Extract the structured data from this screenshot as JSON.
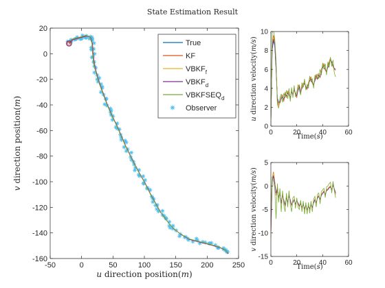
{
  "figure_title": "State Estimation Result",
  "colors": {
    "true": "#0072BD",
    "kf": "#D95319",
    "vbkf_f": "#EDB120",
    "vbkf_d": "#7E2F8E",
    "vbkfseq_d": "#77AC30",
    "observer": "#4DBEEE",
    "axis": "#262626"
  },
  "legend": {
    "items": [
      {
        "label": "True",
        "sub": "",
        "color_key": "true",
        "kind": "line"
      },
      {
        "label": "KF",
        "sub": "",
        "color_key": "kf",
        "kind": "line"
      },
      {
        "label": "VBKF",
        "sub": "f",
        "color_key": "vbkf_f",
        "kind": "line"
      },
      {
        "label": "VBKF",
        "sub": "d",
        "color_key": "vbkf_d",
        "kind": "line"
      },
      {
        "label": "VBKFSEQ",
        "sub": "d",
        "color_key": "vbkfseq_d",
        "kind": "line"
      },
      {
        "label": "Observer",
        "sub": "",
        "color_key": "observer",
        "kind": "marker"
      }
    ]
  },
  "chart_data": [
    {
      "id": "position",
      "type": "scatter",
      "xlabel": "u direction position(m)",
      "ylabel": "v direction position(m)",
      "xlim": [
        -50,
        250
      ],
      "ylim": [
        -160,
        20
      ],
      "xticks": [
        -50,
        0,
        50,
        100,
        150,
        200,
        250
      ],
      "yticks": [
        -160,
        -140,
        -120,
        -100,
        -80,
        -60,
        -40,
        -20,
        0,
        20
      ],
      "start_point": [
        -20,
        8
      ],
      "path": [
        [
          -20,
          8
        ],
        [
          -15,
          11
        ],
        [
          -8,
          12
        ],
        [
          0,
          13
        ],
        [
          8,
          14
        ],
        [
          14,
          13
        ],
        [
          17,
          8
        ],
        [
          18,
          0
        ],
        [
          20,
          -8
        ],
        [
          24,
          -16
        ],
        [
          29,
          -24
        ],
        [
          35,
          -32
        ],
        [
          41,
          -40
        ],
        [
          48,
          -48
        ],
        [
          56,
          -56
        ],
        [
          63,
          -64
        ],
        [
          70,
          -72
        ],
        [
          78,
          -80
        ],
        [
          86,
          -88
        ],
        [
          94,
          -95
        ],
        [
          102,
          -102
        ],
        [
          110,
          -110
        ],
        [
          118,
          -117
        ],
        [
          126,
          -124
        ],
        [
          135,
          -130
        ],
        [
          145,
          -136
        ],
        [
          158,
          -141
        ],
        [
          172,
          -145
        ],
        [
          188,
          -147
        ],
        [
          204,
          -149
        ],
        [
          218,
          -151
        ],
        [
          228,
          -153
        ],
        [
          233,
          -156
        ]
      ]
    },
    {
      "id": "u_velocity",
      "type": "line",
      "xlabel": "Time(s)",
      "ylabel": "u direction velocity(m/s)",
      "xlim": [
        0,
        60
      ],
      "ylim": [
        0,
        10
      ],
      "xticks": [
        0,
        20,
        40,
        60
      ],
      "yticks": [
        0,
        2,
        4,
        6,
        8,
        10
      ],
      "x": [
        0,
        1,
        2,
        3,
        4,
        5,
        6,
        7,
        8,
        9,
        10,
        11,
        12,
        13,
        14,
        15,
        16,
        17,
        18,
        19,
        20,
        21,
        22,
        23,
        24,
        25,
        26,
        27,
        28,
        29,
        30,
        31,
        32,
        33,
        34,
        35,
        36,
        37,
        38,
        39,
        40,
        41,
        42,
        43,
        44,
        45,
        46,
        47,
        48,
        49,
        50
      ],
      "series": [
        {
          "color_key": "true",
          "values": [
            0.3,
            8.0,
            9.0,
            8.5,
            6.0,
            3.0,
            2.5,
            2.6,
            2.9,
            3.0,
            2.8,
            3.4,
            3.2,
            3.5,
            3.3,
            3.0,
            3.6,
            3.4,
            3.8,
            3.5,
            3.2,
            3.8,
            4.1,
            3.6,
            4.0,
            4.3,
            4.5,
            4.2,
            4.0,
            4.4,
            4.8,
            5.0,
            4.6,
            4.4,
            4.8,
            5.3,
            5.0,
            5.4,
            5.2,
            5.8,
            6.2,
            6.4,
            6.0,
            5.8,
            6.2,
            6.6,
            7.0,
            6.8,
            6.4,
            6.1,
            6.0
          ]
        },
        {
          "color_key": "kf",
          "values": [
            0.2,
            8.6,
            9.6,
            9.0,
            6.5,
            2.6,
            2.2,
            2.5,
            3.1,
            3.3,
            2.6,
            3.6,
            3.0,
            3.7,
            3.5,
            2.8,
            3.8,
            3.3,
            4.0,
            3.4,
            3.0,
            4.0,
            4.4,
            3.5,
            4.2,
            4.5,
            4.7,
            4.1,
            3.9,
            4.6,
            5.0,
            5.2,
            4.5,
            4.3,
            5.0,
            5.5,
            4.9,
            5.6,
            5.1,
            6.0,
            6.4,
            6.6,
            5.9,
            5.7,
            6.4,
            6.8,
            7.2,
            6.7,
            6.3,
            6.0,
            5.9
          ]
        },
        {
          "color_key": "vbkf_f",
          "values": [
            0.2,
            8.4,
            9.4,
            8.8,
            6.3,
            2.8,
            2.4,
            2.4,
            3.0,
            3.2,
            2.7,
            3.5,
            3.1,
            3.6,
            3.4,
            2.9,
            3.7,
            3.3,
            3.9,
            3.5,
            3.1,
            3.9,
            4.3,
            3.6,
            4.1,
            4.4,
            4.6,
            4.2,
            4.0,
            4.5,
            4.9,
            5.1,
            4.5,
            4.4,
            4.9,
            5.4,
            5.0,
            5.5,
            5.2,
            5.9,
            6.3,
            6.5,
            6.0,
            5.8,
            6.3,
            6.7,
            7.1,
            6.8,
            6.4,
            6.1,
            6.0
          ]
        },
        {
          "color_key": "vbkf_d",
          "values": [
            0.3,
            8.2,
            9.2,
            8.6,
            6.1,
            2.9,
            2.5,
            2.5,
            3.0,
            3.1,
            2.8,
            3.4,
            3.2,
            3.5,
            3.3,
            3.0,
            3.6,
            3.4,
            3.8,
            3.5,
            3.2,
            3.8,
            4.2,
            3.6,
            4.0,
            4.3,
            4.5,
            4.2,
            4.0,
            4.4,
            4.8,
            5.0,
            4.6,
            4.4,
            4.8,
            5.3,
            5.0,
            5.4,
            5.2,
            5.8,
            6.2,
            6.4,
            6.0,
            5.8,
            6.2,
            6.6,
            7.0,
            6.8,
            6.4,
            6.1,
            6.0
          ]
        },
        {
          "color_key": "vbkfseq_d",
          "values": [
            0.5,
            9.8,
            10.2,
            9.2,
            7.0,
            2.3,
            1.9,
            3.0,
            3.4,
            2.5,
            3.5,
            3.0,
            3.8,
            2.9,
            4.0,
            2.6,
            4.1,
            3.0,
            4.3,
            3.1,
            3.6,
            4.4,
            3.8,
            3.3,
            4.6,
            4.1,
            5.0,
            3.8,
            4.4,
            4.0,
            5.3,
            4.7,
            5.0,
            4.0,
            5.4,
            5.0,
            5.5,
            5.0,
            6.0,
            5.4,
            6.7,
            6.0,
            6.6,
            5.4,
            6.8,
            6.2,
            7.3,
            6.3,
            7.0,
            5.6,
            5.2
          ]
        }
      ]
    },
    {
      "id": "v_velocity",
      "type": "line",
      "xlabel": "Time(s)",
      "ylabel": "v direction velocity(m/s)",
      "xlim": [
        0,
        60
      ],
      "ylim": [
        -15,
        5
      ],
      "xticks": [
        0,
        20,
        40,
        60
      ],
      "yticks": [
        -15,
        -10,
        -5,
        0,
        5
      ],
      "x": [
        0,
        1,
        2,
        3,
        4,
        5,
        6,
        7,
        8,
        9,
        10,
        11,
        12,
        13,
        14,
        15,
        16,
        17,
        18,
        19,
        20,
        21,
        22,
        23,
        24,
        25,
        26,
        27,
        28,
        29,
        30,
        31,
        32,
        33,
        34,
        35,
        36,
        37,
        38,
        39,
        40,
        41,
        42,
        43,
        44,
        45,
        46,
        47,
        48,
        49,
        50
      ],
      "series": [
        {
          "color_key": "true",
          "values": [
            -9.0,
            1.0,
            2.0,
            0.5,
            -1.5,
            -0.5,
            -2.5,
            -1.5,
            -3.5,
            -2.0,
            -3.0,
            -4.0,
            -2.5,
            -3.5,
            -2.0,
            -3.0,
            -4.0,
            -3.5,
            -3.0,
            -3.8,
            -3.2,
            -3.6,
            -4.2,
            -3.8,
            -4.5,
            -4.0,
            -4.8,
            -4.2,
            -5.0,
            -4.4,
            -4.8,
            -4.0,
            -4.5,
            -3.6,
            -3.0,
            -3.5,
            -2.6,
            -2.2,
            -2.8,
            -2.0,
            -1.6,
            -1.2,
            -1.8,
            -1.0,
            -0.8,
            -0.4,
            -0.2,
            -0.8,
            0.2,
            -0.6,
            -1.5
          ]
        },
        {
          "color_key": "kf",
          "values": [
            -11.0,
            1.5,
            3.0,
            1.0,
            -2.0,
            -0.2,
            -3.0,
            -1.2,
            -3.8,
            -1.8,
            -3.2,
            -4.3,
            -2.3,
            -3.7,
            -1.8,
            -3.2,
            -4.2,
            -3.3,
            -2.8,
            -4.0,
            -3.0,
            -3.8,
            -4.4,
            -3.6,
            -4.7,
            -3.8,
            -5.0,
            -4.0,
            -5.2,
            -4.2,
            -5.0,
            -3.8,
            -4.7,
            -3.4,
            -2.8,
            -3.7,
            -2.4,
            -2.0,
            -3.0,
            -1.8,
            -1.4,
            -1.0,
            -2.0,
            -0.8,
            -0.6,
            -0.2,
            0.0,
            -1.0,
            0.4,
            -0.8,
            -1.8
          ]
        },
        {
          "color_key": "vbkf_f",
          "values": [
            -10.5,
            1.3,
            2.7,
            0.8,
            -1.8,
            -0.3,
            -2.8,
            -1.3,
            -3.7,
            -1.9,
            -3.1,
            -4.2,
            -2.4,
            -3.6,
            -1.9,
            -3.1,
            -4.1,
            -3.4,
            -2.9,
            -3.9,
            -3.1,
            -3.7,
            -4.3,
            -3.7,
            -4.6,
            -3.9,
            -4.9,
            -4.1,
            -5.1,
            -4.3,
            -4.9,
            -3.9,
            -4.6,
            -3.5,
            -2.9,
            -3.6,
            -2.5,
            -2.1,
            -2.9,
            -1.9,
            -1.5,
            -1.1,
            -1.9,
            -0.9,
            -0.7,
            -0.3,
            -0.1,
            -0.9,
            0.3,
            -0.7,
            -1.7
          ]
        },
        {
          "color_key": "vbkf_d",
          "values": [
            -9.5,
            1.1,
            2.2,
            0.6,
            -1.6,
            -0.4,
            -2.6,
            -1.4,
            -3.6,
            -2.0,
            -3.0,
            -4.1,
            -2.5,
            -3.5,
            -2.0,
            -3.0,
            -4.0,
            -3.5,
            -3.0,
            -3.8,
            -3.2,
            -3.6,
            -4.2,
            -3.8,
            -4.5,
            -4.0,
            -4.8,
            -4.2,
            -5.0,
            -4.4,
            -4.8,
            -4.0,
            -4.5,
            -3.6,
            -3.0,
            -3.5,
            -2.6,
            -2.2,
            -2.8,
            -2.0,
            -1.6,
            -1.2,
            -1.8,
            -1.0,
            -0.8,
            -0.4,
            -0.2,
            -0.8,
            0.2,
            -0.6,
            -1.5
          ]
        },
        {
          "color_key": "vbkfseq_d",
          "values": [
            -6.0,
            2.0,
            1.0,
            -0.5,
            -7.0,
            0.5,
            -3.5,
            -0.5,
            -5.5,
            -1.0,
            -4.0,
            -5.5,
            -1.5,
            -4.5,
            -1.0,
            -4.0,
            -5.5,
            -2.5,
            -2.2,
            -4.8,
            -2.5,
            -4.5,
            -5.0,
            -3.0,
            -5.5,
            -3.2,
            -6.0,
            -3.5,
            -6.0,
            -3.5,
            -5.8,
            -3.2,
            -5.5,
            -2.8,
            -2.2,
            -4.5,
            -1.8,
            -1.5,
            -3.8,
            -1.2,
            -0.8,
            -0.5,
            -2.5,
            -0.2,
            0.0,
            0.5,
            0.8,
            -1.5,
            1.0,
            -1.0,
            -2.5
          ]
        }
      ]
    }
  ]
}
